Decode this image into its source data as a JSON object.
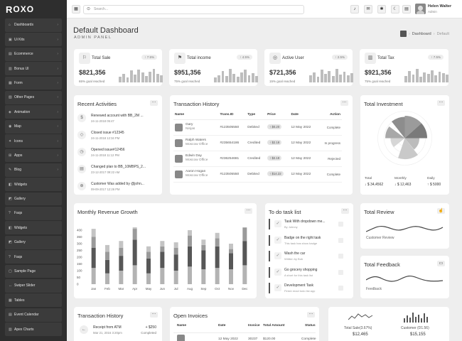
{
  "app": {
    "logo_prefix": "R",
    "logo_rest": "OXO"
  },
  "sidebar": {
    "items": [
      {
        "label": "Dashboards",
        "icon": "home-icon",
        "arrow": true
      },
      {
        "label": "Ui Kits",
        "icon": "layers-icon",
        "arrow": true
      },
      {
        "label": "Ecommerce",
        "icon": "cart-icon",
        "arrow": true
      },
      {
        "label": "Bonus UI",
        "icon": "gift-icon",
        "arrow": true
      },
      {
        "label": "Form",
        "icon": "form-icon",
        "arrow": true
      },
      {
        "label": "Other Pages",
        "icon": "pages-icon",
        "arrow": true
      },
      {
        "label": "Animation",
        "icon": "animation-icon",
        "arrow": true
      },
      {
        "label": "Map",
        "icon": "map-pin-icon",
        "arrow": true
      },
      {
        "label": "Icons",
        "icon": "star-icon",
        "arrow": true
      },
      {
        "label": "Apps",
        "icon": "apps-icon",
        "arrow": true
      },
      {
        "label": "Blog",
        "icon": "blog-icon",
        "arrow": true
      },
      {
        "label": "Widgets",
        "icon": "widgets-icon",
        "arrow": false
      },
      {
        "label": "Gallery",
        "icon": "gallery-icon",
        "arrow": false
      },
      {
        "label": "Faqs",
        "icon": "faq-icon",
        "arrow": false
      },
      {
        "label": "Widgets",
        "icon": "widgets-icon",
        "arrow": false
      },
      {
        "label": "Gallery",
        "icon": "gallery-icon",
        "arrow": false
      },
      {
        "label": "Faqs",
        "icon": "faq-icon",
        "arrow": false
      },
      {
        "label": "Sample Page",
        "icon": "page-icon",
        "arrow": false
      },
      {
        "label": "Swiper Slider",
        "icon": "slider-icon",
        "arrow": false
      },
      {
        "label": "Tables",
        "icon": "table-icon",
        "arrow": false
      },
      {
        "label": "Event Calendar",
        "icon": "calendar-icon",
        "arrow": false
      },
      {
        "label": "Apex Charts",
        "icon": "chart-icon",
        "arrow": false
      }
    ]
  },
  "topbar": {
    "search_placeholder": "Search...",
    "user_name": "Helen Walter",
    "user_role": "Admin"
  },
  "page": {
    "title": "Default Dashboard",
    "subtitle": "ADMIN PANEL",
    "bread_mid": "Dashboard",
    "bread_current": "Default"
  },
  "stats": [
    {
      "title": "Total Sale",
      "pill": "↑ 7.5%",
      "value": "$821,356",
      "sub": "65% goal reached",
      "icon": "sale-icon",
      "bars": [
        0.4,
        0.6,
        0.35,
        0.85,
        0.55,
        0.9,
        0.7,
        0.45,
        0.75,
        0.95,
        0.6,
        0.5
      ]
    },
    {
      "title": "Total income",
      "pill": "↑ 4.5%",
      "value": "$951,356",
      "sub": "75% goal reached",
      "icon": "income-icon",
      "bars": [
        0.35,
        0.5,
        0.8,
        0.45,
        0.95,
        0.6,
        0.4,
        0.7,
        0.9,
        0.5,
        0.65,
        0.45
      ]
    },
    {
      "title": "Active User",
      "pill": "↑ 2.5%",
      "value": "$721,356",
      "sub": "15% goal reached",
      "icon": "user-icon",
      "bars": [
        0.5,
        0.7,
        0.4,
        0.9,
        0.6,
        0.8,
        0.45,
        0.95,
        0.55,
        0.75,
        0.5,
        0.65
      ]
    },
    {
      "title": "Total Tax",
      "pill": "↑ 7.5%",
      "value": "$921,356",
      "sub": "75% goal reached",
      "icon": "tax-icon",
      "bars": [
        0.45,
        0.8,
        0.55,
        0.95,
        0.4,
        0.7,
        0.6,
        0.85,
        0.5,
        0.75,
        0.65,
        0.55
      ]
    }
  ],
  "recent": {
    "title": "Recent Activities",
    "items": [
      {
        "text": "Renewed account with BB_2M ...",
        "date": "24-11-2018 05:47",
        "icon": "dollar-icon"
      },
      {
        "text": "Closed issue #12345",
        "date": "24-11-2018 12:34 PM",
        "icon": "cube-icon"
      },
      {
        "text": "Opened issue#12456",
        "date": "24-11-2018 11:12 PM",
        "icon": "clock-icon"
      },
      {
        "text": "Changed plan to BB_10MBPS_2...",
        "date": "23-12-2017 09:22 AM",
        "icon": "calendar-icon"
      },
      {
        "text": "Customer Was added by @john...",
        "date": "09-09-2017 12:26 PM",
        "icon": "globe-icon"
      }
    ]
  },
  "transactions": {
    "title": "Transaction History",
    "headers": [
      "Name",
      "Trans.ID",
      "Type",
      "Price",
      "Date",
      "Action"
    ],
    "rows": [
      {
        "name": "Gary",
        "loc": "Ninjas",
        "id": "#123505550",
        "type": "Debited",
        "price": "↑ $0.20",
        "date": "12 May 2022",
        "status": "Complete"
      },
      {
        "name": "Ralph Waters",
        "loc": "Moscow Office",
        "id": "#235654186",
        "type": "Credited",
        "price": "↑ $2.18",
        "date": "12 May 2022",
        "status": "In progress"
      },
      {
        "name": "Edwin Day",
        "loc": "Moscow Office",
        "id": "#236254681",
        "type": "Credited",
        "price": "↑ $2.18",
        "date": "12 May 2022",
        "status": "Rejected"
      },
      {
        "name": "Aaron Hogan",
        "loc": "Moscow Office",
        "id": "#123505550",
        "type": "Debited",
        "price": "↑ $14.22",
        "date": "12 May 2022",
        "status": "Complete"
      }
    ]
  },
  "investment": {
    "title": "Total Investment",
    "stats": [
      {
        "label": "Total",
        "value": "$ 34,4562",
        "icon": "arrow-down-icon"
      },
      {
        "label": "Monthly",
        "value": "$ 12,463",
        "icon": "arrow-down-icon"
      },
      {
        "label": "Daily",
        "value": "$ 5000",
        "icon": "arrow-up-icon"
      }
    ]
  },
  "revenue": {
    "title": "Monthly Revenue Growth"
  },
  "chart_data": {
    "type": "bar",
    "categories": [
      "Jan",
      "Feb",
      "Mar",
      "Apr",
      "May",
      "Jun",
      "Jul",
      "Aug",
      "Sep",
      "Oct",
      "Nov",
      "Dec"
    ],
    "ylim": [
      0,
      400
    ],
    "yticks": [
      0,
      50,
      100,
      150,
      200,
      250,
      300,
      350,
      400
    ],
    "series": [
      {
        "values": [
          120,
          80,
          100,
          140,
          80,
          120,
          100,
          130,
          110,
          120,
          110,
          140
        ]
      },
      {
        "values": [
          150,
          100,
          110,
          190,
          110,
          120,
          120,
          150,
          140,
          160,
          120,
          180
        ]
      },
      {
        "values": [
          80,
          60,
          60,
          80,
          50,
          40,
          50,
          80,
          40,
          60,
          30,
          100
        ]
      },
      {
        "values": [
          60,
          50,
          50,
          50,
          40,
          40,
          40,
          40,
          40,
          40,
          40,
          40
        ]
      }
    ],
    "colors": [
      "#b3b3b3",
      "#575757",
      "#9a9a9a",
      "#c4c4c4"
    ]
  },
  "todo": {
    "title": "To do task list",
    "items": [
      {
        "title": "Task With dropdown me...",
        "sub": "By Johnny"
      },
      {
        "title": "Badge on the right task",
        "sub": "This task has show badge"
      },
      {
        "title": "Wash the car",
        "sub": "Written by Bob"
      },
      {
        "title": "Go grocery shopping",
        "sub": "A short for this task list"
      },
      {
        "title": "Development Task",
        "sub": "Finish react todo list app"
      }
    ]
  },
  "review": {
    "title": "Total Review",
    "label": "Customer Review",
    "icon": "thumbs-up-icon"
  },
  "feedback": {
    "title": "Total Feedback",
    "label": "Feedback",
    "icon": "chat-icon"
  },
  "trans2": {
    "title": "Transaction History",
    "item": {
      "title": "Receipt from ATM",
      "date": "Mar 21, 2016 3:20pm",
      "amount": "+ $250",
      "status": "Completed"
    }
  },
  "invoices": {
    "title": "Open Invoices",
    "headers": [
      "Name",
      "Date",
      "Invoice",
      "Total Amount",
      "Status"
    ],
    "row": {
      "date": "12 May 2022",
      "invoice": "30237",
      "amount": "$120.00",
      "status": "Complete"
    }
  },
  "mini": {
    "sale": {
      "label": "Total Sale(3.67%)",
      "value": "$12,465"
    },
    "customer": {
      "label": "Customer (D1.56)",
      "value": "$15,155"
    }
  }
}
